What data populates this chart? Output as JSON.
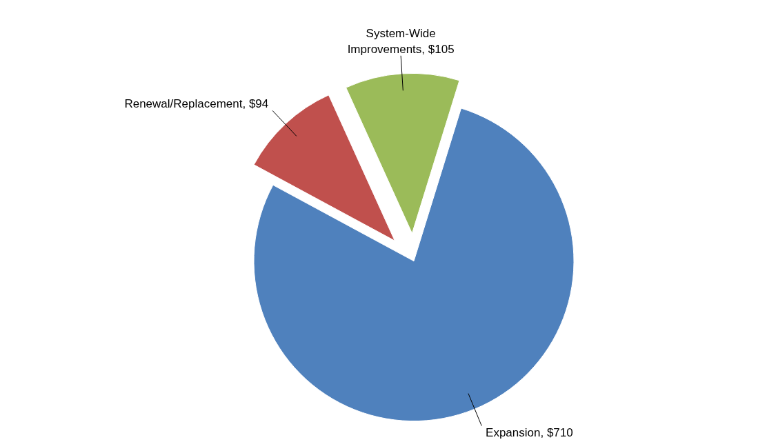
{
  "chart_data": {
    "type": "pie",
    "categories": [
      "Expansion",
      "Renewal/Replacement",
      "System-Wide Improvements"
    ],
    "values": [
      710,
      94,
      105
    ],
    "value_labels": [
      "$710",
      "$94",
      "$105"
    ],
    "colors": [
      "#4f81bd",
      "#c0504d",
      "#9bbb59"
    ]
  }
}
